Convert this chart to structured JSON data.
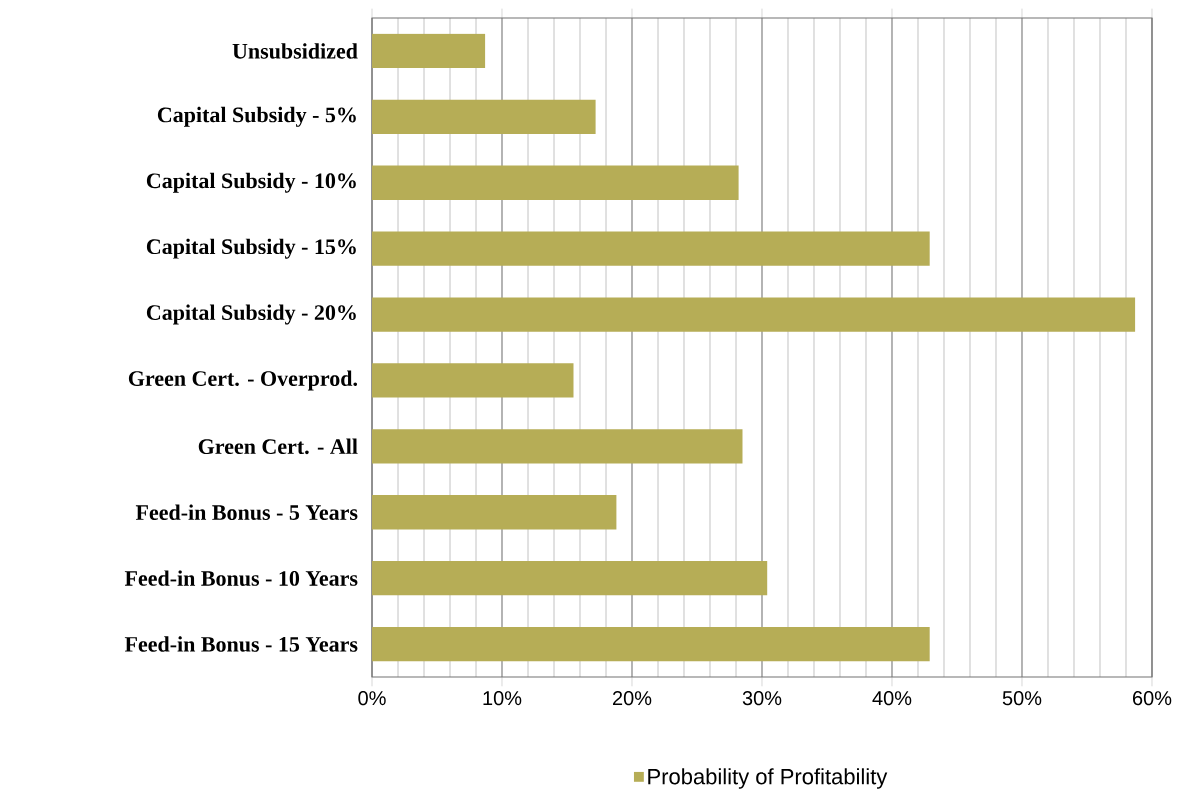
{
  "chart_data": {
    "type": "bar",
    "orientation": "horizontal",
    "categories": [
      "Unsubsidized",
      "Capital Subsidy - 5%",
      "Capital Subsidy - 10%",
      "Capital Subsidy - 15%",
      "Capital Subsidy - 20%",
      "Green Cert. - Overprod.",
      "Green Cert. - All",
      "Feed-in Bonus - 5 Years",
      "Feed-in Bonus - 10 Years",
      "Feed-in Bonus - 15 Years"
    ],
    "series": [
      {
        "name": "Probability of Profitability",
        "color": "#b6ad56",
        "values": [
          8.7,
          17.2,
          28.2,
          42.9,
          58.7,
          15.5,
          28.5,
          18.8,
          30.4,
          42.9
        ]
      }
    ],
    "xlim": [
      0,
      60
    ],
    "xticks": [
      {
        "value": 0,
        "label": "0%"
      },
      {
        "value": 10,
        "label": "10%"
      },
      {
        "value": 20,
        "label": "20%"
      },
      {
        "value": 30,
        "label": "30%"
      },
      {
        "value": 40,
        "label": "40%"
      },
      {
        "value": 50,
        "label": "50%"
      },
      {
        "value": 60,
        "label": "60%"
      }
    ],
    "grid": "x",
    "legend": "bottom"
  }
}
